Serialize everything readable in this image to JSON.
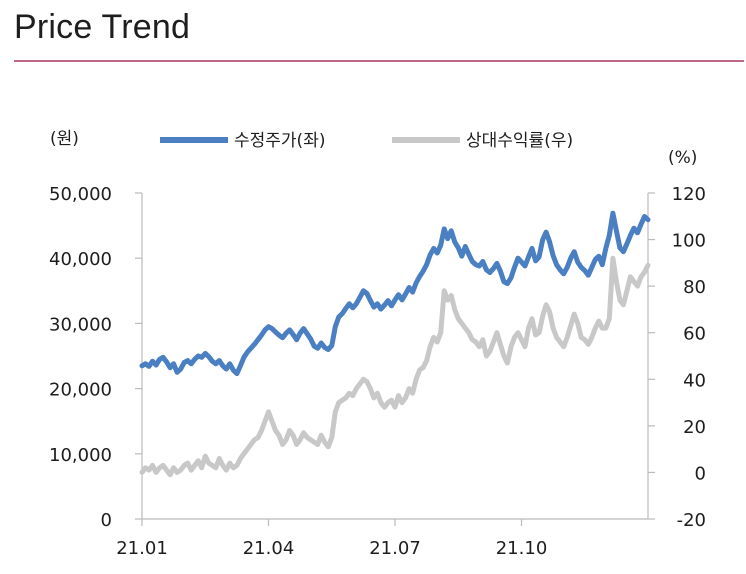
{
  "header": {
    "title": "Price Trend"
  },
  "chart_data": {
    "type": "line",
    "left_unit": "(원)",
    "right_unit": "(%)",
    "x_ticks": [
      "21.01",
      "21.04",
      "21.07",
      "21.10"
    ],
    "y_left": {
      "min": 0,
      "max": 50000,
      "ticks": [
        "0",
        "10,000",
        "20,000",
        "30,000",
        "40,000",
        "50,000"
      ]
    },
    "y_right": {
      "min": -20,
      "max": 120,
      "ticks": [
        "-20",
        "0",
        "20",
        "40",
        "60",
        "80",
        "100",
        "120"
      ]
    },
    "colors": {
      "price": "#4a7fc1",
      "relative": "#c8c8c8",
      "axis": "#bbbbbb",
      "rule": "#c0688a"
    },
    "series": [
      {
        "name": "수정주가(좌)",
        "axis": "left",
        "values": [
          23500,
          23800,
          23400,
          24200,
          23600,
          24500,
          24800,
          24100,
          23200,
          23800,
          22500,
          23000,
          24000,
          24300,
          23800,
          24500,
          25000,
          24800,
          25400,
          24900,
          24200,
          23800,
          24300,
          23500,
          23000,
          23800,
          22800,
          22300,
          23500,
          24800,
          25600,
          26200,
          26800,
          27500,
          28200,
          29000,
          29500,
          29200,
          28700,
          28200,
          27800,
          28500,
          29000,
          28300,
          27500,
          28500,
          29200,
          28400,
          27600,
          26500,
          26200,
          27000,
          26300,
          26000,
          26600,
          29500,
          31000,
          31500,
          32300,
          33000,
          32400,
          33000,
          34000,
          35000,
          34600,
          33500,
          32500,
          33000,
          32200,
          32800,
          33500,
          32700,
          33600,
          34400,
          33600,
          34500,
          35500,
          34800,
          36200,
          37200,
          38000,
          39000,
          40500,
          41500,
          40800,
          42000,
          44500,
          43000,
          44200,
          42500,
          41600,
          40300,
          41800,
          40600,
          39500,
          39000,
          38800,
          39500,
          38200,
          37800,
          38400,
          39200,
          38000,
          36400,
          36100,
          37000,
          38600,
          40000,
          39400,
          38800,
          40200,
          41500,
          39600,
          40200,
          42800,
          44000,
          42500,
          40400,
          39000,
          38200,
          37600,
          38600,
          40000,
          41000,
          39400,
          38600,
          38100,
          37400,
          38600,
          39800,
          40300,
          39000,
          41500,
          43500,
          46900,
          44200,
          41600,
          41000,
          42200,
          43500,
          44600,
          43900,
          45200,
          46400,
          45900
        ]
      },
      {
        "name": "상대수익률(우)",
        "axis": "right",
        "values": [
          0,
          2,
          1,
          3,
          0,
          2,
          3,
          1,
          -1,
          2,
          0,
          1,
          3,
          4,
          1,
          3,
          5,
          2,
          7,
          4,
          3,
          2,
          6,
          3,
          1,
          4,
          2,
          3,
          6,
          8,
          10,
          12,
          14,
          15,
          18,
          22,
          26,
          22,
          18,
          16,
          12,
          14,
          18,
          16,
          12,
          14,
          17,
          15,
          14,
          13,
          12,
          16,
          13,
          11,
          15,
          26,
          30,
          31,
          32,
          34,
          33,
          36,
          38,
          40,
          39,
          36,
          32,
          34,
          30,
          28,
          30,
          31,
          28,
          33,
          30,
          32,
          36,
          34,
          40,
          44,
          45,
          48,
          54,
          58,
          56,
          60,
          78,
          74,
          76,
          70,
          66,
          64,
          62,
          60,
          57,
          56,
          54,
          57,
          50,
          52,
          56,
          60,
          55,
          50,
          47,
          54,
          58,
          60,
          57,
          54,
          62,
          66,
          59,
          60,
          67,
          72,
          69,
          62,
          58,
          56,
          54,
          58,
          63,
          68,
          64,
          58,
          57,
          55,
          58,
          62,
          65,
          62,
          62,
          66,
          92,
          82,
          74,
          72,
          78,
          84,
          82,
          80,
          84,
          86,
          89
        ]
      }
    ]
  }
}
